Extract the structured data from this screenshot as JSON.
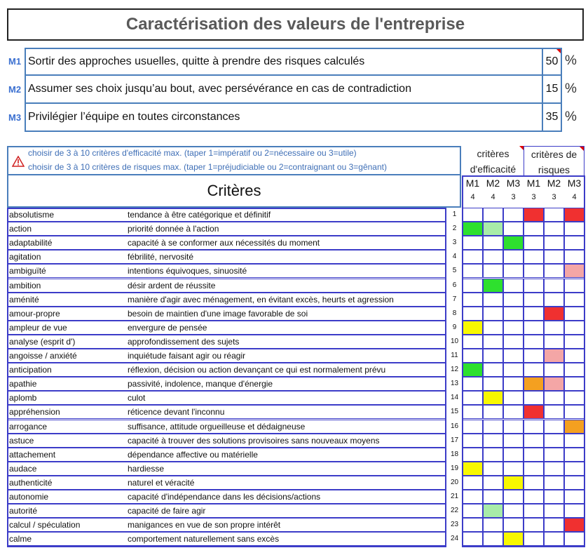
{
  "title": "Caractérisation des valeurs de l'entreprise",
  "missions": [
    {
      "label": "M1",
      "text": "Sortir des approches usuelles, quitte à prendre des risques calculés",
      "value": "50",
      "unit": "%"
    },
    {
      "label": "M2",
      "text": "Assumer ses choix jusqu’au bout, avec persévérance en cas de contradiction",
      "value": "15",
      "unit": "%"
    },
    {
      "label": "M3",
      "text": "Privilégier l’équipe en toutes circonstances",
      "value": "35",
      "unit": "%"
    }
  ],
  "instructions": {
    "line1": "choisir de 3 à 10 critères d'efficacité max. (taper 1=impératif ou 2=nécessaire ou 3=utile)",
    "line2": "choisir de 3 à 10 critères de risques max. (taper 1=préjudiciable ou 2=contraignant ou 3=gênant)"
  },
  "table_header": {
    "criteres": "Critères",
    "efficacite": "critères d'efficacité",
    "risques": "critères de risques",
    "cols": [
      "M1",
      "M2",
      "M3",
      "M1",
      "M2",
      "M3"
    ],
    "counts": [
      "4",
      "4",
      "3",
      "3",
      "3",
      "4"
    ]
  },
  "colors": {
    "red": "#f03030",
    "pink": "#f4a6a6",
    "green": "#2ee02e",
    "lightgreen": "#a8eca8",
    "yellow": "#f8f800",
    "orange": "#f4a020"
  },
  "rows": [
    {
      "name": "absolutisme",
      "def": "tendance à être catégorique et définitif",
      "num": "1",
      "cells": [
        "",
        "",
        "",
        "red",
        "",
        "red"
      ]
    },
    {
      "name": "action",
      "def": "priorité donnée à l'action",
      "num": "2",
      "cells": [
        "green",
        "lightgreen",
        "",
        "",
        "",
        ""
      ]
    },
    {
      "name": "adaptabilité",
      "def": "capacité à se conformer aux nécessités du moment",
      "num": "3",
      "cells": [
        "",
        "",
        "green",
        "",
        "",
        ""
      ]
    },
    {
      "name": "agitation",
      "def": "fébrilité, nervosité",
      "num": "4",
      "cells": [
        "",
        "",
        "",
        "",
        "",
        ""
      ]
    },
    {
      "name": "ambiguïté",
      "def": "intentions équivoques, sinuosité",
      "num": "5",
      "cells": [
        "",
        "",
        "",
        "",
        "",
        "pink"
      ]
    },
    {
      "name": "ambition",
      "def": "désir ardent de réussite",
      "num": "6",
      "cells": [
        "",
        "green",
        "",
        "",
        "",
        ""
      ]
    },
    {
      "name": "aménité",
      "def": "manière d'agir avec ménagement, en évitant excès, heurts et agression",
      "num": "7",
      "cells": [
        "",
        "",
        "",
        "",
        "",
        ""
      ]
    },
    {
      "name": "amour-propre",
      "def": "besoin de maintien d'une image favorable de soi",
      "num": "8",
      "cells": [
        "",
        "",
        "",
        "",
        "red",
        ""
      ]
    },
    {
      "name": "ampleur de vue",
      "def": "envergure de pensée",
      "num": "9",
      "cells": [
        "yellow",
        "",
        "",
        "",
        "",
        ""
      ]
    },
    {
      "name": "analyse (esprit d')",
      "def": "approfondissement des sujets",
      "num": "10",
      "cells": [
        "",
        "",
        "",
        "",
        "",
        ""
      ]
    },
    {
      "name": "angoisse / anxiété",
      "def": "inquiétude faisant agir ou réagir",
      "num": "11",
      "cells": [
        "",
        "",
        "",
        "",
        "pink",
        ""
      ]
    },
    {
      "name": "anticipation",
      "def": "réflexion, décision ou action devançant ce qui est normalement prévu",
      "num": "12",
      "cells": [
        "green",
        "",
        "",
        "",
        "",
        ""
      ]
    },
    {
      "name": "apathie",
      "def": "passivité, indolence, manque d'énergie",
      "num": "13",
      "cells": [
        "",
        "",
        "",
        "orange",
        "pink",
        ""
      ]
    },
    {
      "name": "aplomb",
      "def": "culot",
      "num": "14",
      "cells": [
        "",
        "yellow",
        "",
        "",
        "",
        ""
      ]
    },
    {
      "name": "appréhension",
      "def": "réticence devant l'inconnu",
      "num": "15",
      "cells": [
        "",
        "",
        "",
        "red",
        "",
        ""
      ]
    },
    {
      "name": "arrogance",
      "def": "suffisance, attitude orgueilleuse et dédaigneuse",
      "num": "16",
      "cells": [
        "",
        "",
        "",
        "",
        "",
        "orange"
      ]
    },
    {
      "name": "astuce",
      "def": "capacité à trouver des solutions provisoires sans nouveaux moyens",
      "num": "17",
      "cells": [
        "",
        "",
        "",
        "",
        "",
        ""
      ]
    },
    {
      "name": "attachement",
      "def": "dépendance affective ou matérielle",
      "num": "18",
      "cells": [
        "",
        "",
        "",
        "",
        "",
        ""
      ]
    },
    {
      "name": "audace",
      "def": "hardiesse",
      "num": "19",
      "cells": [
        "yellow",
        "",
        "",
        "",
        "",
        ""
      ]
    },
    {
      "name": "authenticité",
      "def": "naturel et véracité",
      "num": "20",
      "cells": [
        "",
        "",
        "yellow",
        "",
        "",
        ""
      ]
    },
    {
      "name": "autonomie",
      "def": "capacité d'indépendance dans les décisions/actions",
      "num": "21",
      "cells": [
        "",
        "",
        "",
        "",
        "",
        ""
      ]
    },
    {
      "name": "autorité",
      "def": "capacité de faire agir",
      "num": "22",
      "cells": [
        "",
        "lightgreen",
        "",
        "",
        "",
        ""
      ]
    },
    {
      "name": "calcul / spéculation",
      "def": "manigances en vue de son propre intérêt",
      "num": "23",
      "cells": [
        "",
        "",
        "",
        "",
        "",
        "red"
      ]
    },
    {
      "name": "calme",
      "def": "comportement naturellement sans excès",
      "num": "24",
      "cells": [
        "",
        "",
        "yellow",
        "",
        "",
        ""
      ]
    }
  ]
}
